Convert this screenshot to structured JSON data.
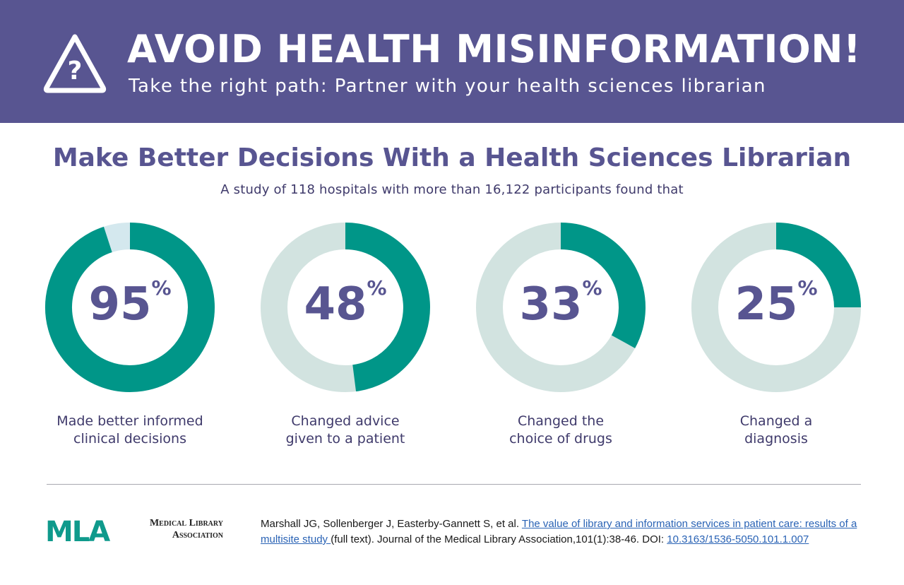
{
  "banner": {
    "title": "AVOID HEALTH MISINFORMATION!",
    "subtitle": "Take the right path: Partner with your health sciences librarian",
    "icon": "warning-question-icon"
  },
  "section": {
    "title": "Make Better Decisions With a Health Sciences Librarian",
    "subtitle": "A study of 118 hospitals with more than 16,122 participants found that"
  },
  "colors": {
    "banner": "#585591",
    "accent": "#009688",
    "track": "#d2e3e0",
    "track_first": "#d4e8ee",
    "text": "#3f3a6b",
    "link": "#2a63b5"
  },
  "chart_data": [
    {
      "type": "pie",
      "value": 95,
      "label": "95",
      "unit": "%",
      "caption_line1": "Made better informed",
      "caption_line2": "clinical decisions"
    },
    {
      "type": "pie",
      "value": 48,
      "label": "48",
      "unit": "%",
      "caption_line1": "Changed advice",
      "caption_line2": "given to a patient"
    },
    {
      "type": "pie",
      "value": 33,
      "label": "33",
      "unit": "%",
      "caption_line1": "Changed the",
      "caption_line2": "choice of drugs"
    },
    {
      "type": "pie",
      "value": 25,
      "label": "25",
      "unit": "%",
      "caption_line1": "Changed a",
      "caption_line2": "diagnosis"
    }
  ],
  "footer": {
    "logo_text": "MLA",
    "org_line1": "Medical Library",
    "org_line2": "Association",
    "cite_authors": "Marshall JG, Sollenberger J, Easterby-Gannett S, et al. ",
    "cite_title": "The value of library and information services in patient care: results of a multisite study ",
    "cite_fulltext": "(full text). Journal of the Medical Library Association,101(1):38-46. DOI: ",
    "cite_doi": "10.3163/1536-5050.101.1.007"
  }
}
